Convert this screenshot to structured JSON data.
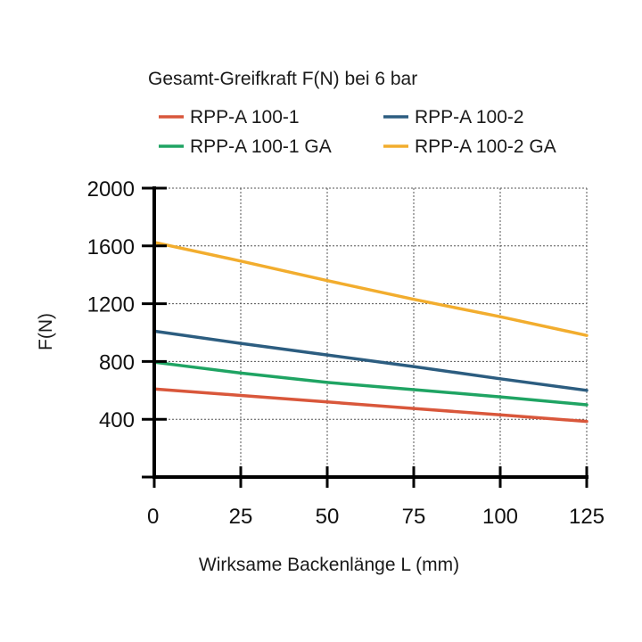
{
  "chart_data": {
    "type": "line",
    "title": "Gesamt-Greifkraft F(N) bei 6 bar",
    "xlabel": "Wirksame Backenlänge L (mm)",
    "ylabel": "F(N)",
    "x": [
      0,
      25,
      50,
      75,
      100,
      125
    ],
    "xlim": [
      0,
      125
    ],
    "ylim": [
      0,
      2000
    ],
    "xticks": [
      "0",
      "25",
      "50",
      "75",
      "100",
      "125"
    ],
    "yticks": [
      "400",
      "800",
      "1200",
      "1600",
      "2000"
    ],
    "ytick_values": [
      400,
      800,
      1200,
      1600,
      2000
    ],
    "grid": true,
    "legend": "top",
    "series": [
      {
        "name": "RPP-A 100-1",
        "color": "#d9573b",
        "values": [
          610,
          565,
          520,
          475,
          430,
          385
        ]
      },
      {
        "name": "RPP-A 100-2",
        "color": "#2c5d80",
        "values": [
          1010,
          925,
          845,
          765,
          680,
          600
        ]
      },
      {
        "name": "RPP-A 100-1 GA",
        "color": "#1fa463",
        "values": [
          795,
          720,
          655,
          605,
          555,
          500
        ]
      },
      {
        "name": "RPP-A 100-2 GA",
        "color": "#f2ad2e",
        "values": [
          1625,
          1495,
          1360,
          1230,
          1110,
          980
        ]
      }
    ]
  }
}
